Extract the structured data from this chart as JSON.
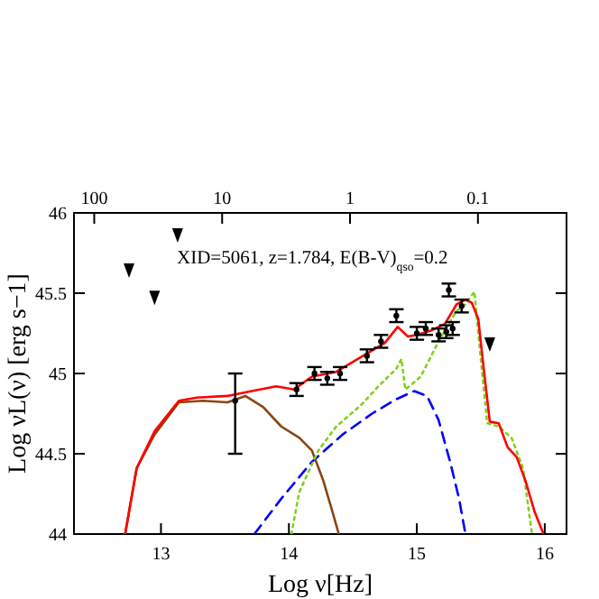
{
  "chart_data": {
    "type": "line",
    "xlabel": "Log ν[Hz]",
    "ylabel": "Log νL(ν) [erg s−1]",
    "annotations": [
      "XID=5061, z=1.784, E(B-V)$_{qso}$=0.2"
    ],
    "xlim": [
      12.32,
      16.17
    ],
    "ylim": [
      44,
      46
    ],
    "xticks": [
      13,
      14,
      15,
      16
    ],
    "yticks": [
      44,
      44.5,
      45,
      45.5,
      46
    ],
    "x2lim": [
      144,
      0.0203
    ],
    "x2ticks": [
      100,
      10,
      1,
      0.1
    ],
    "log": "x2",
    "series": [
      {
        "color": "#8b4513",
        "line_style": "solid",
        "x": [
          12.72,
          12.81,
          12.95,
          13.14,
          13.33,
          13.52,
          13.66,
          13.8,
          13.94,
          14.08,
          14.18,
          14.27,
          14.34,
          14.39
        ],
        "values": [
          44.0,
          44.41,
          44.62,
          44.82,
          44.83,
          44.82,
          44.86,
          44.79,
          44.67,
          44.6,
          44.52,
          44.33,
          44.14,
          44.0
        ]
      },
      {
        "color": "#0000ff",
        "line_style": "dashed",
        "x": [
          13.73,
          13.94,
          14.18,
          14.42,
          14.65,
          14.84,
          14.98,
          15.08,
          15.17,
          15.26,
          15.33,
          15.38
        ],
        "values": [
          44.0,
          44.22,
          44.45,
          44.62,
          44.75,
          44.84,
          44.89,
          44.86,
          44.71,
          44.45,
          44.22,
          44.0
        ]
      },
      {
        "color": "#7fd11b",
        "line_style": "dotted",
        "x": [
          14.02,
          14.08,
          14.23,
          14.37,
          14.56,
          14.7,
          14.84,
          14.88,
          14.91,
          15.03,
          15.17,
          15.31,
          15.38,
          15.45,
          15.5,
          15.55,
          15.64,
          15.74,
          15.83,
          15.9
        ],
        "values": [
          44.0,
          44.26,
          44.52,
          44.67,
          44.8,
          44.92,
          45.03,
          45.09,
          44.9,
          44.98,
          45.2,
          45.39,
          45.43,
          45.51,
          45.09,
          44.69,
          44.67,
          44.6,
          44.41,
          44.0
        ]
      },
      {
        "color": "#ff0000",
        "line_style": "solid",
        "x": [
          12.72,
          12.81,
          12.95,
          13.14,
          13.28,
          13.52,
          13.71,
          13.9,
          14.04,
          14.18,
          14.37,
          14.56,
          14.75,
          14.85,
          14.93,
          15.0,
          15.12,
          15.22,
          15.31,
          15.38,
          15.43,
          15.48,
          15.52,
          15.57,
          15.64,
          15.71,
          15.78,
          15.85,
          15.92,
          15.99
        ],
        "values": [
          44.0,
          44.41,
          44.64,
          44.83,
          44.85,
          44.86,
          44.89,
          44.92,
          44.9,
          44.98,
          45.01,
          45.1,
          45.19,
          45.29,
          45.23,
          45.24,
          45.27,
          45.31,
          45.43,
          45.46,
          45.44,
          45.34,
          45.05,
          44.7,
          44.69,
          44.54,
          44.48,
          44.33,
          44.14,
          44.0
        ]
      },
      {
        "type": "scatter",
        "color": "#000000",
        "marker": "circle",
        "x": [
          13.58,
          14.06,
          14.2,
          14.3,
          14.4,
          14.61,
          14.72,
          14.84,
          15.0,
          15.07,
          15.17,
          15.23,
          15.28,
          15.25,
          15.35
        ],
        "values": [
          44.83,
          44.9,
          45.0,
          44.97,
          45.0,
          45.11,
          45.2,
          45.36,
          45.25,
          45.28,
          45.24,
          45.26,
          45.28,
          45.52,
          45.42
        ],
        "errors": [
          [
            44.5,
            45.0
          ],
          0.04,
          0.04,
          0.04,
          0.04,
          0.04,
          0.04,
          0.04,
          0.04,
          0.04,
          0.04,
          0.04,
          0.04,
          0.04,
          0.04
        ]
      },
      {
        "type": "scatter",
        "color": "#000000",
        "marker": "triangle",
        "x": [
          12.75,
          12.95,
          13.13,
          15.57
        ],
        "values": [
          45.64,
          45.47,
          45.86,
          45.18
        ]
      }
    ]
  }
}
